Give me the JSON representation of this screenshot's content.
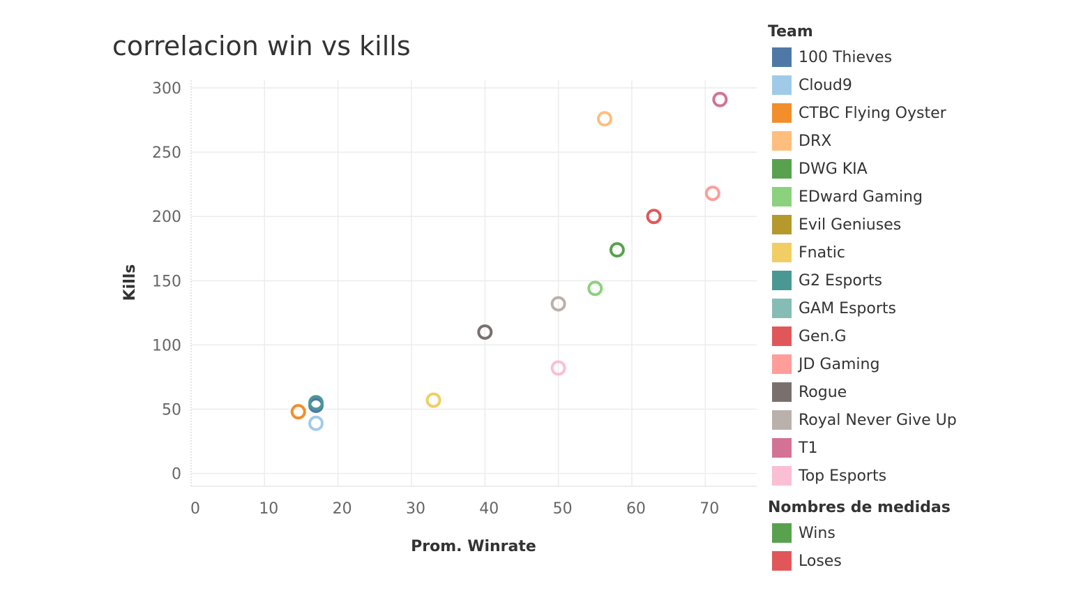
{
  "chart_data": {
    "type": "scatter",
    "title": "correlacion win vs kills",
    "xlabel": "Prom. Winrate",
    "ylabel": "Kills",
    "xlim": [
      0,
      77
    ],
    "ylim": [
      -10,
      306
    ],
    "xticks": [
      0,
      10,
      20,
      30,
      40,
      50,
      60,
      70
    ],
    "yticks": [
      0,
      50,
      100,
      150,
      200,
      250,
      300
    ],
    "grid": true,
    "marker": "hollow-circle",
    "legend_position": "right",
    "legend_title": "Team",
    "series": [
      {
        "name": "100 Thieves",
        "color": "#4e79a7",
        "points": [
          {
            "x": 17,
            "y": 53
          }
        ]
      },
      {
        "name": "Cloud9",
        "color": "#a0cbe8",
        "points": [
          {
            "x": 17,
            "y": 39
          }
        ]
      },
      {
        "name": "CTBC Flying Oyster",
        "color": "#f28e2b",
        "points": [
          {
            "x": 14.6,
            "y": 48
          }
        ]
      },
      {
        "name": "DRX",
        "color": "#ffbe7d",
        "points": [
          {
            "x": 56.3,
            "y": 276
          }
        ]
      },
      {
        "name": "DWG KIA",
        "color": "#59a14f",
        "points": [
          {
            "x": 58,
            "y": 174
          }
        ]
      },
      {
        "name": "EDward Gaming",
        "color": "#8cd17d",
        "points": [
          {
            "x": 55,
            "y": 144
          }
        ]
      },
      {
        "name": "Evil Geniuses",
        "color": "#b6992d",
        "points": []
      },
      {
        "name": "Fnatic",
        "color": "#f1ce63",
        "points": [
          {
            "x": 33,
            "y": 57
          }
        ]
      },
      {
        "name": "G2 Esports",
        "color": "#499894",
        "points": [
          {
            "x": 17,
            "y": 55
          }
        ]
      },
      {
        "name": "GAM Esports",
        "color": "#86bcb6",
        "points": []
      },
      {
        "name": "Gen.G",
        "color": "#e15759",
        "points": [
          {
            "x": 63,
            "y": 200
          }
        ]
      },
      {
        "name": "JD Gaming",
        "color": "#ff9d9a",
        "points": [
          {
            "x": 71,
            "y": 218
          }
        ]
      },
      {
        "name": "Rogue",
        "color": "#79706e",
        "points": [
          {
            "x": 40,
            "y": 110
          }
        ]
      },
      {
        "name": "Royal Never Give Up",
        "color": "#bab0ac",
        "points": [
          {
            "x": 50,
            "y": 132
          }
        ]
      },
      {
        "name": "T1",
        "color": "#d37295",
        "points": [
          {
            "x": 72,
            "y": 291
          }
        ]
      },
      {
        "name": "Top Esports",
        "color": "#fabfd2",
        "points": [
          {
            "x": 50,
            "y": 82
          }
        ]
      }
    ],
    "measures_legend": {
      "title": "Nombres de medidas",
      "items": [
        {
          "name": "Wins",
          "color": "#59a14f"
        },
        {
          "name": "Loses",
          "color": "#e15759"
        }
      ]
    }
  }
}
